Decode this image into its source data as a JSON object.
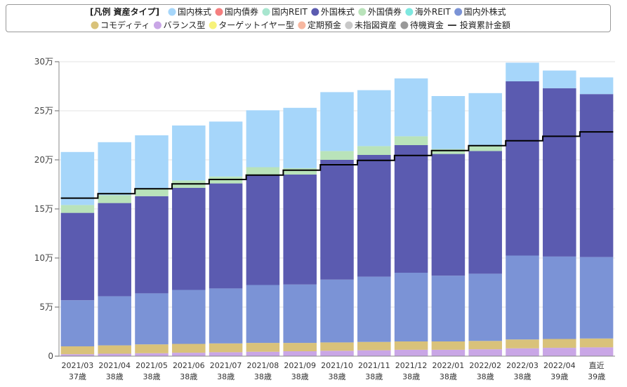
{
  "chart_data": {
    "type": "bar",
    "stacked": true,
    "legend_title": "[凡例 資産タイプ]",
    "categories": [
      "2021/03",
      "2021/04",
      "2021/05",
      "2021/06",
      "2021/07",
      "2021/08",
      "2021/09",
      "2021/10",
      "2021/11",
      "2021/12",
      "2022/01",
      "2022/02",
      "2022/03",
      "2022/04",
      "直近"
    ],
    "ages": [
      "37歳",
      "38歳",
      "38歳",
      "38歳",
      "38歳",
      "38歳",
      "38歳",
      "38歳",
      "38歳",
      "38歳",
      "38歳",
      "38歳",
      "38歳",
      "39歳",
      "39歳"
    ],
    "ylim": [
      0,
      300000
    ],
    "yticks": [
      0,
      50000,
      100000,
      150000,
      200000,
      250000,
      300000
    ],
    "ytick_labels": [
      "0",
      "5万",
      "10万",
      "15万",
      "20万",
      "25万",
      "30万"
    ],
    "legend": [
      {
        "name": "国内株式",
        "color": "#a6d6fa"
      },
      {
        "name": "国内債券",
        "color": "#f57f7f"
      },
      {
        "name": "国内REIT",
        "color": "#a8e6cf"
      },
      {
        "name": "外国株式",
        "color": "#5b5bb0"
      },
      {
        "name": "外国債券",
        "color": "#b9e3ba"
      },
      {
        "name": "海外REIT",
        "color": "#7ee8e0"
      },
      {
        "name": "国内外株式",
        "color": "#7b93d6"
      },
      {
        "name": "コモディティ",
        "color": "#d9c27a"
      },
      {
        "name": "バランス型",
        "color": "#c9a6e6"
      },
      {
        "name": "ターゲットイヤー型",
        "color": "#f7f27a"
      },
      {
        "name": "定期預金",
        "color": "#f7b7a0"
      },
      {
        "name": "未指図資産",
        "color": "#c8c8c8"
      },
      {
        "name": "待機資金",
        "color": "#999999"
      },
      {
        "name": "投資累計金額",
        "color": "#000000",
        "line": true
      }
    ],
    "stack_order": [
      "バランス型",
      "コモディティ",
      "国内外株式",
      "外国株式",
      "外国債券",
      "国内株式"
    ],
    "series": [
      {
        "name": "バランス型",
        "color": "#c9a6e6",
        "values": [
          2000,
          2500,
          3000,
          3500,
          4000,
          4500,
          5000,
          5500,
          6000,
          6500,
          6500,
          7000,
          8000,
          8500,
          9000
        ]
      },
      {
        "name": "コモディティ",
        "color": "#d9c27a",
        "values": [
          8000,
          8500,
          9000,
          9000,
          9000,
          9000,
          8500,
          8500,
          8500,
          8500,
          8500,
          8500,
          9000,
          9000,
          9000
        ]
      },
      {
        "name": "国内外株式",
        "color": "#7b93d6",
        "values": [
          47000,
          50000,
          52000,
          55000,
          56000,
          59000,
          59500,
          64000,
          66500,
          70000,
          67000,
          68500,
          85500,
          84000,
          83000
        ]
      },
      {
        "name": "外国株式",
        "color": "#5b5bb0",
        "values": [
          89000,
          95000,
          99000,
          104000,
          107000,
          112000,
          112000,
          122000,
          124000,
          130000,
          124000,
          125000,
          177500,
          171500,
          166000
        ]
      },
      {
        "name": "外国債券",
        "color": "#b9e3ba",
        "values": [
          8000,
          8000,
          8000,
          7500,
          7000,
          8000,
          6500,
          9000,
          9000,
          9000,
          5000,
          5000,
          0,
          0,
          0
        ]
      },
      {
        "name": "国内株式",
        "color": "#a6d6fa",
        "values": [
          54000,
          54000,
          54000,
          56000,
          56000,
          58000,
          61500,
          60000,
          57000,
          59000,
          54000,
          54000,
          19000,
          18000,
          17000
        ]
      }
    ],
    "cumulative_investment": {
      "name": "投資累計金額",
      "values": [
        161000,
        165500,
        170500,
        175500,
        180000,
        184500,
        189500,
        195000,
        199500,
        204500,
        209500,
        214500,
        219500,
        224000,
        228500
      ]
    }
  }
}
